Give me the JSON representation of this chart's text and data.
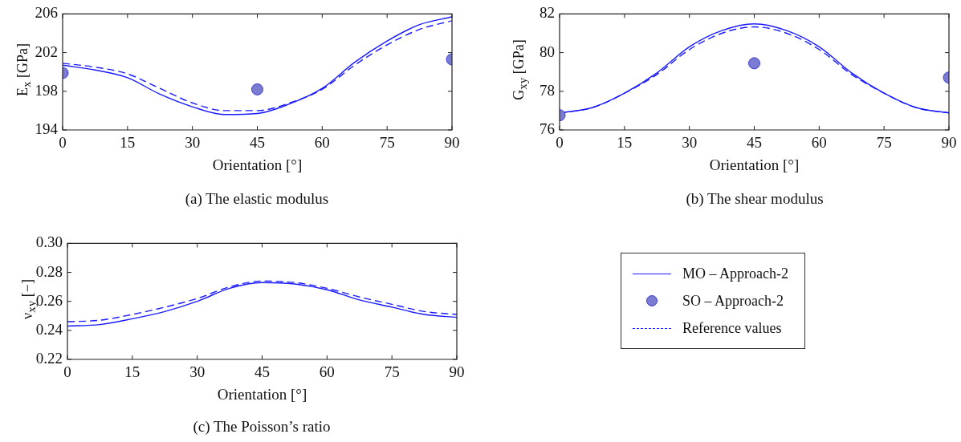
{
  "chart_data": [
    {
      "type": "line",
      "title": "(a)  The elastic modulus",
      "xlabel": "Orientation [°]",
      "ylabel": "E$_{x}$  [GPa]",
      "xlim": [
        0,
        90
      ],
      "xticks": [
        0,
        15,
        30,
        45,
        60,
        75,
        90
      ],
      "ylim": [
        194,
        206
      ],
      "yticks": [
        194,
        198,
        202,
        206
      ],
      "grid": false,
      "legend": false,
      "x": [
        0,
        7.5,
        15,
        22.5,
        30,
        37.5,
        45,
        52.5,
        60,
        67.5,
        75,
        82.5,
        90
      ],
      "series": [
        {
          "type": "line",
          "color": "#1a1aff",
          "line_style": "solid",
          "marker": "none",
          "values": [
            200.7,
            200.2,
            199.4,
            197.7,
            196.4,
            195.6,
            195.7,
            196.7,
            198.3,
            201.0,
            203.2,
            204.9,
            205.7
          ]
        },
        {
          "type": "scatter",
          "color": "#7b7bd1",
          "marker": "circle",
          "x": [
            0,
            45,
            90
          ],
          "values": [
            199.9,
            198.2,
            201.3
          ]
        },
        {
          "type": "line",
          "color": "#1a1aff",
          "line_style": "dashed",
          "marker": "none",
          "values": [
            200.9,
            200.5,
            199.8,
            198.3,
            196.8,
            196.0,
            196.0,
            196.8,
            198.2,
            200.7,
            202.8,
            204.4,
            205.3
          ]
        }
      ]
    },
    {
      "type": "line",
      "title": "(b)  The shear modulus",
      "xlabel": "Orientation [°]",
      "ylabel": "G$_{xy}$  [GPa]",
      "xlim": [
        0,
        90
      ],
      "xticks": [
        0,
        15,
        30,
        45,
        60,
        75,
        90
      ],
      "ylim": [
        76,
        82
      ],
      "yticks": [
        76,
        78,
        80,
        82
      ],
      "grid": false,
      "legend": "bottom",
      "x": [
        0,
        7.5,
        15,
        22.5,
        30,
        37.5,
        45,
        52.5,
        60,
        67.5,
        75,
        82.5,
        90
      ],
      "series": [
        {
          "name": "MO – Approach-2",
          "type": "line",
          "color": "#1a1aff",
          "line_style": "solid",
          "marker": "none",
          "values": [
            76.88,
            77.15,
            77.9,
            78.95,
            80.3,
            81.14,
            81.49,
            81.14,
            80.3,
            78.95,
            77.9,
            77.15,
            76.88
          ]
        },
        {
          "name": "SO – Approach-2",
          "type": "scatter",
          "color": "#7b7bd1",
          "marker": "circle",
          "x": [
            0,
            45,
            90
          ],
          "values": [
            76.76,
            79.45,
            78.71
          ]
        },
        {
          "name": "Reference values",
          "type": "line",
          "color": "#1a1aff",
          "line_style": "dashed",
          "marker": "none",
          "values": [
            76.88,
            77.15,
            77.9,
            78.87,
            80.16,
            81.0,
            81.33,
            81.0,
            80.16,
            78.87,
            77.9,
            77.15,
            76.88
          ]
        }
      ]
    },
    {
      "type": "line",
      "title": "(c)  The Poisson’s ratio",
      "xlabel": "Orientation [°]",
      "ylabel": "ν$_{xy}$  [−]",
      "xlim": [
        0,
        90
      ],
      "xticks": [
        0,
        15,
        30,
        45,
        60,
        75,
        90
      ],
      "ylim": [
        0.22,
        0.3
      ],
      "yticks": [
        {
          "value": 0.22,
          "label": "0.22"
        },
        {
          "value": 0.24,
          "label": "0.24"
        },
        {
          "value": 0.26,
          "label": "0.26"
        },
        {
          "value": 0.28,
          "label": "0.28"
        },
        {
          "value": 0.3,
          "label": "0.30"
        }
      ],
      "grid": false,
      "legend": false,
      "x": [
        0,
        7.5,
        15,
        22.5,
        30,
        37.5,
        45,
        52.5,
        60,
        67.5,
        75,
        82.5,
        90
      ],
      "series": [
        {
          "type": "line",
          "color": "#1a1aff",
          "line_style": "solid",
          "marker": "none",
          "values": [
            0.243,
            0.244,
            0.248,
            0.253,
            0.26,
            0.269,
            0.273,
            0.272,
            0.268,
            0.261,
            0.256,
            0.251,
            0.249
          ]
        },
        {
          "type": "line",
          "color": "#1a1aff",
          "line_style": "dashed",
          "marker": "none",
          "values": [
            0.246,
            0.247,
            0.251,
            0.256,
            0.262,
            0.27,
            0.274,
            0.273,
            0.269,
            0.263,
            0.258,
            0.253,
            0.251
          ]
        }
      ]
    }
  ]
}
